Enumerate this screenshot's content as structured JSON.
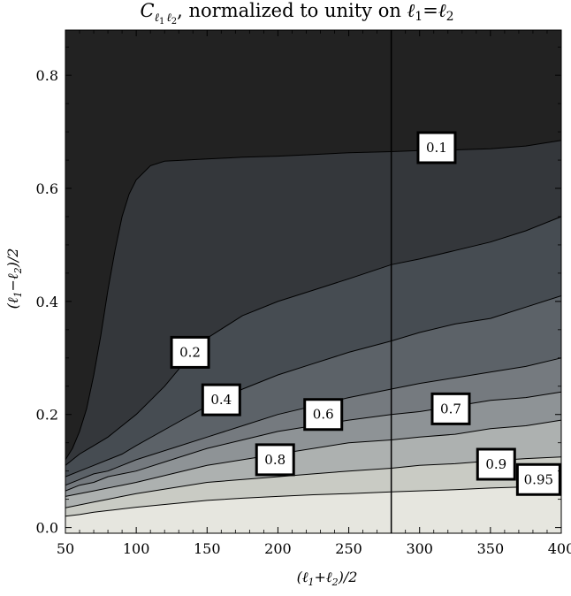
{
  "chart_data": {
    "type": "contour",
    "title": {
      "C": "C",
      "l1": "ℓ",
      "sub1": "1",
      "l2": "ℓ",
      "sub2": "2",
      "rest": ", normalized to unity on ",
      "eq_l1": "ℓ",
      "eq_s1": "1",
      "eq_sign": "=",
      "eq_l2": "ℓ",
      "eq_s2": "2"
    },
    "xlabel": "(ℓ1+ℓ2)/2",
    "ylabel": "(ℓ1−ℓ2)/2",
    "xlim": [
      50,
      400
    ],
    "ylim": [
      -0.01,
      0.88
    ],
    "x_ticks": [
      50,
      100,
      150,
      200,
      250,
      300,
      350,
      400
    ],
    "y_ticks": [
      0.0,
      0.2,
      0.4,
      0.6,
      0.8
    ],
    "x_tick_labels": [
      "50",
      "100",
      "150",
      "200",
      "250",
      "300",
      "350",
      "400"
    ],
    "y_tick_labels": [
      "0.0",
      "0.2",
      "0.4",
      "0.6",
      "0.8"
    ],
    "vertical_line_x": 280,
    "contour_levels": [
      "0.1",
      "0.2",
      "0.4",
      "0.6",
      "0.7",
      "0.8",
      "0.9",
      "0.95"
    ],
    "fill_colors": [
      "#222222",
      "#34373b",
      "#464c52",
      "#5c6268",
      "#757a7f",
      "#8e9396",
      "#adb1b0",
      "#c9cbc4",
      "#e6e6df"
    ],
    "contours": [
      {
        "level": "0.1",
        "points": [
          [
            50,
            0.12
          ],
          [
            55,
            0.14
          ],
          [
            60,
            0.17
          ],
          [
            65,
            0.21
          ],
          [
            70,
            0.27
          ],
          [
            75,
            0.34
          ],
          [
            80,
            0.42
          ],
          [
            85,
            0.49
          ],
          [
            90,
            0.55
          ],
          [
            95,
            0.59
          ],
          [
            100,
            0.615
          ],
          [
            110,
            0.64
          ],
          [
            120,
            0.648
          ],
          [
            135,
            0.65
          ],
          [
            150,
            0.652
          ],
          [
            175,
            0.655
          ],
          [
            200,
            0.657
          ],
          [
            225,
            0.66
          ],
          [
            250,
            0.663
          ],
          [
            280,
            0.665
          ],
          [
            300,
            0.667
          ],
          [
            325,
            0.668
          ],
          [
            350,
            0.67
          ],
          [
            375,
            0.675
          ],
          [
            400,
            0.685
          ]
        ]
      },
      {
        "level": "0.2",
        "points": [
          [
            50,
            0.11
          ],
          [
            55,
            0.12
          ],
          [
            60,
            0.13
          ],
          [
            70,
            0.145
          ],
          [
            80,
            0.16
          ],
          [
            90,
            0.18
          ],
          [
            100,
            0.2
          ],
          [
            110,
            0.225
          ],
          [
            120,
            0.25
          ],
          [
            130,
            0.28
          ],
          [
            140,
            0.31
          ],
          [
            150,
            0.335
          ],
          [
            175,
            0.375
          ],
          [
            200,
            0.4
          ],
          [
            225,
            0.42
          ],
          [
            250,
            0.44
          ],
          [
            280,
            0.465
          ],
          [
            300,
            0.475
          ],
          [
            325,
            0.49
          ],
          [
            350,
            0.505
          ],
          [
            375,
            0.525
          ],
          [
            400,
            0.55
          ]
        ]
      },
      {
        "level": "0.4",
        "points": [
          [
            50,
            0.09
          ],
          [
            60,
            0.1
          ],
          [
            70,
            0.11
          ],
          [
            80,
            0.12
          ],
          [
            90,
            0.13
          ],
          [
            100,
            0.145
          ],
          [
            125,
            0.18
          ],
          [
            150,
            0.215
          ],
          [
            175,
            0.245
          ],
          [
            200,
            0.27
          ],
          [
            225,
            0.29
          ],
          [
            250,
            0.31
          ],
          [
            280,
            0.33
          ],
          [
            300,
            0.345
          ],
          [
            325,
            0.36
          ],
          [
            350,
            0.37
          ],
          [
            375,
            0.39
          ],
          [
            400,
            0.41
          ]
        ]
      },
      {
        "level": "0.6",
        "points": [
          [
            50,
            0.075
          ],
          [
            60,
            0.085
          ],
          [
            70,
            0.095
          ],
          [
            80,
            0.1
          ],
          [
            90,
            0.11
          ],
          [
            100,
            0.12
          ],
          [
            125,
            0.14
          ],
          [
            150,
            0.16
          ],
          [
            175,
            0.18
          ],
          [
            200,
            0.2
          ],
          [
            225,
            0.215
          ],
          [
            250,
            0.23
          ],
          [
            280,
            0.245
          ],
          [
            300,
            0.255
          ],
          [
            325,
            0.265
          ],
          [
            350,
            0.275
          ],
          [
            375,
            0.285
          ],
          [
            400,
            0.3
          ]
        ]
      },
      {
        "level": "0.7",
        "points": [
          [
            50,
            0.065
          ],
          [
            60,
            0.075
          ],
          [
            70,
            0.08
          ],
          [
            80,
            0.09
          ],
          [
            90,
            0.095
          ],
          [
            100,
            0.1
          ],
          [
            125,
            0.12
          ],
          [
            150,
            0.14
          ],
          [
            175,
            0.155
          ],
          [
            200,
            0.17
          ],
          [
            225,
            0.18
          ],
          [
            250,
            0.19
          ],
          [
            280,
            0.2
          ],
          [
            300,
            0.205
          ],
          [
            325,
            0.215
          ],
          [
            350,
            0.225
          ],
          [
            375,
            0.23
          ],
          [
            400,
            0.24
          ]
        ]
      },
      {
        "level": "0.8",
        "points": [
          [
            50,
            0.055
          ],
          [
            60,
            0.06
          ],
          [
            70,
            0.065
          ],
          [
            80,
            0.07
          ],
          [
            90,
            0.075
          ],
          [
            100,
            0.08
          ],
          [
            125,
            0.095
          ],
          [
            150,
            0.11
          ],
          [
            175,
            0.12
          ],
          [
            200,
            0.13
          ],
          [
            225,
            0.14
          ],
          [
            250,
            0.15
          ],
          [
            280,
            0.155
          ],
          [
            300,
            0.16
          ],
          [
            325,
            0.165
          ],
          [
            350,
            0.175
          ],
          [
            375,
            0.18
          ],
          [
            400,
            0.19
          ]
        ]
      },
      {
        "level": "0.9",
        "points": [
          [
            50,
            0.035
          ],
          [
            60,
            0.04
          ],
          [
            70,
            0.045
          ],
          [
            80,
            0.05
          ],
          [
            90,
            0.055
          ],
          [
            100,
            0.06
          ],
          [
            125,
            0.07
          ],
          [
            150,
            0.08
          ],
          [
            175,
            0.085
          ],
          [
            200,
            0.09
          ],
          [
            225,
            0.095
          ],
          [
            250,
            0.1
          ],
          [
            280,
            0.105
          ],
          [
            300,
            0.11
          ],
          [
            325,
            0.113
          ],
          [
            350,
            0.118
          ],
          [
            375,
            0.122
          ],
          [
            400,
            0.125
          ]
        ]
      },
      {
        "level": "0.95",
        "points": [
          [
            50,
            0.02
          ],
          [
            60,
            0.023
          ],
          [
            70,
            0.027
          ],
          [
            80,
            0.03
          ],
          [
            90,
            0.033
          ],
          [
            100,
            0.036
          ],
          [
            125,
            0.042
          ],
          [
            150,
            0.048
          ],
          [
            175,
            0.052
          ],
          [
            200,
            0.055
          ],
          [
            225,
            0.058
          ],
          [
            250,
            0.06
          ],
          [
            280,
            0.063
          ],
          [
            300,
            0.065
          ],
          [
            325,
            0.067
          ],
          [
            350,
            0.07
          ],
          [
            375,
            0.072
          ],
          [
            400,
            0.075
          ]
        ]
      }
    ],
    "contour_labels": [
      {
        "text": "0.1",
        "x": 312,
        "y": 0.672
      },
      {
        "text": "0.2",
        "x": 138,
        "y": 0.31
      },
      {
        "text": "0.4",
        "x": 160,
        "y": 0.226
      },
      {
        "text": "0.6",
        "x": 232,
        "y": 0.2
      },
      {
        "text": "0.7",
        "x": 322,
        "y": 0.21
      },
      {
        "text": "0.8",
        "x": 198,
        "y": 0.12
      },
      {
        "text": "0.9",
        "x": 354,
        "y": 0.112
      },
      {
        "text": "0.95",
        "x": 384,
        "y": 0.085
      }
    ]
  }
}
